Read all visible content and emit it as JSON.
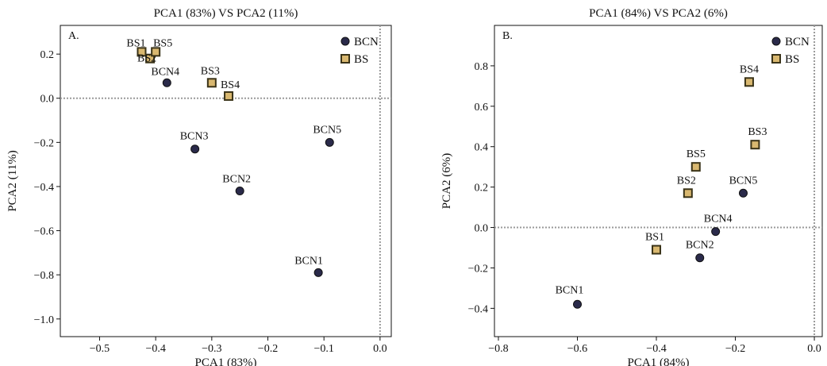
{
  "chart_data": [
    {
      "type": "scatter",
      "panel_tag": "A.",
      "title": "PCA1 (83%) VS PCA2 (11%)",
      "xlabel": "PCA1 (83%)",
      "ylabel": "PCA2 (11%)",
      "xlim": [
        -0.57,
        0.02
      ],
      "ylim": [
        -1.08,
        0.33
      ],
      "xticks": [
        -0.5,
        -0.4,
        -0.3,
        -0.2,
        -0.1,
        0.0
      ],
      "xtick_labels": [
        "−0.5",
        "−0.4",
        "−0.3",
        "−0.2",
        "−0.1",
        "0.0"
      ],
      "yticks": [
        0.2,
        0.0,
        -0.2,
        -0.4,
        -0.6,
        -0.8,
        -1.0
      ],
      "ytick_labels": [
        "0.2",
        "0.0",
        "−0.2",
        "−0.4",
        "−0.6",
        "−0.8",
        "−1.0"
      ],
      "reference_lines": {
        "x": 0.0,
        "y": 0.0
      },
      "legend_position": "top-right",
      "legend": [
        {
          "name": "BCN",
          "marker": "circle"
        },
        {
          "name": "BS",
          "marker": "square"
        }
      ],
      "series": [
        {
          "name": "BCN",
          "marker": "circle",
          "color": "#2a2a4a",
          "points": [
            {
              "label": "BCN1",
              "x": -0.11,
              "y": -0.79
            },
            {
              "label": "BCN2",
              "x": -0.25,
              "y": -0.42
            },
            {
              "label": "BCN3",
              "x": -0.33,
              "y": -0.23
            },
            {
              "label": "BCN4",
              "x": -0.38,
              "y": 0.07
            },
            {
              "label": "BCN5",
              "x": -0.09,
              "y": -0.2
            }
          ]
        },
        {
          "name": "BS",
          "marker": "square",
          "color": "#d9b870",
          "points": [
            {
              "label": "BS1",
              "x": -0.425,
              "y": 0.21
            },
            {
              "label": "BS2",
              "x": -0.41,
              "y": 0.18
            },
            {
              "label": "BS5",
              "x": -0.4,
              "y": 0.21
            },
            {
              "label": "BS3",
              "x": -0.3,
              "y": 0.07
            },
            {
              "label": "BS4",
              "x": -0.27,
              "y": 0.01
            }
          ]
        }
      ]
    },
    {
      "type": "scatter",
      "panel_tag": "B.",
      "title": "PCA1 (84%) VS PCA2 (6%)",
      "xlabel": "PCA1 (84%)",
      "ylabel": "PCA2 (6%)",
      "xlim": [
        -0.81,
        0.02
      ],
      "ylim": [
        -0.54,
        1.0
      ],
      "xticks": [
        -0.8,
        -0.6,
        -0.4,
        -0.2,
        0.0
      ],
      "xtick_labels": [
        "−0.8",
        "−0.6",
        "−0.4",
        "−0.2",
        "0.0"
      ],
      "yticks": [
        0.8,
        0.6,
        0.4,
        0.2,
        0.0,
        -0.2,
        -0.4
      ],
      "ytick_labels": [
        "0.8",
        "0.6",
        "0.4",
        "0.2",
        "0.0",
        "−0.2",
        "−0.4"
      ],
      "reference_lines": {
        "x": 0.0,
        "y": 0.0
      },
      "legend_position": "top-right",
      "legend": [
        {
          "name": "BCN",
          "marker": "circle"
        },
        {
          "name": "BS",
          "marker": "square"
        }
      ],
      "series": [
        {
          "name": "BCN",
          "marker": "circle",
          "color": "#2a2a4a",
          "points": [
            {
              "label": "BCN1",
              "x": -0.6,
              "y": -0.38
            },
            {
              "label": "BCN2",
              "x": -0.29,
              "y": -0.15
            },
            {
              "label": "BCN4",
              "x": -0.25,
              "y": -0.02
            },
            {
              "label": "BCN5",
              "x": -0.18,
              "y": 0.17
            }
          ]
        },
        {
          "name": "BS",
          "marker": "square",
          "color": "#d9b870",
          "points": [
            {
              "label": "BS1",
              "x": -0.4,
              "y": -0.11
            },
            {
              "label": "BS2",
              "x": -0.32,
              "y": 0.17
            },
            {
              "label": "BS5",
              "x": -0.3,
              "y": 0.3
            },
            {
              "label": "BS3",
              "x": -0.15,
              "y": 0.41
            },
            {
              "label": "BS4",
              "x": -0.165,
              "y": 0.72
            }
          ]
        }
      ]
    }
  ]
}
